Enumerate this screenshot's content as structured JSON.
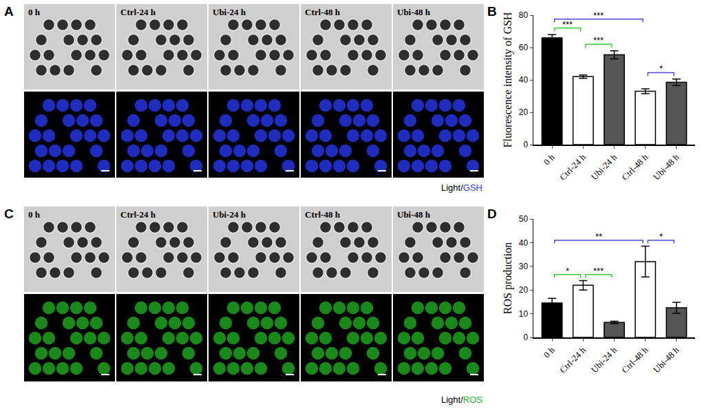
{
  "image_panels": [
    {
      "letter": "A",
      "labels": [
        "0 h",
        "Ctrl-24 h",
        "Ubi-24 h",
        "Ctrl-48 h",
        "Ubi-48 h"
      ],
      "channel_label": [
        "Light/",
        "GSH"
      ],
      "channel_color": "#2a3cff"
    },
    {
      "letter": "C",
      "labels": [
        "0 h",
        "Ctrl-24 h",
        "Ubi-24 h",
        "Ctrl-48 h",
        "Ubi-48 h"
      ],
      "channel_label": [
        "Light/",
        "ROS"
      ],
      "channel_color": "#22b822"
    }
  ],
  "chart_data": [
    {
      "letter": "B",
      "type": "bar",
      "y_label": "Fluorescence intensity of GSH",
      "categories": [
        "0 h",
        "Ctrl-24 h",
        "Ubi-24 h",
        "Ctrl-48 h",
        "Ubi-48 h"
      ],
      "values": [
        66,
        42,
        55.5,
        33,
        38.5
      ],
      "errors": [
        2,
        1,
        2.5,
        1.5,
        2
      ],
      "colors": [
        "#000000",
        "#ffffff",
        "#555555",
        "#ffffff",
        "#555555"
      ],
      "ylim": [
        0,
        80
      ],
      "yticks": [
        0,
        20,
        40,
        60,
        80
      ],
      "grid": false,
      "annotations": [
        {
          "from": "0 h",
          "to": "Ctrl-24 h",
          "text": "***",
          "color": "#33cc33"
        },
        {
          "from": "Ctrl-24 h",
          "to": "Ubi-24 h",
          "text": "***",
          "color": "#33cc33"
        },
        {
          "from": "0 h",
          "to": "Ctrl-48 h",
          "text": "***",
          "color": "#4a4ad8"
        },
        {
          "from": "Ctrl-48 h",
          "to": "Ubi-48 h",
          "text": "*",
          "color": "#4a4ad8"
        }
      ]
    },
    {
      "letter": "D",
      "type": "bar",
      "y_label": "ROS production",
      "categories": [
        "0 h",
        "Ctrl-24 h",
        "Ubi-24 h",
        "Ctrl-48 h",
        "Ubi-48 h"
      ],
      "values": [
        14.5,
        22,
        6.3,
        32,
        12.5
      ],
      "errors": [
        2,
        2,
        0.5,
        6.5,
        2.3
      ],
      "colors": [
        "#000000",
        "#ffffff",
        "#555555",
        "#ffffff",
        "#555555"
      ],
      "ylim": [
        0,
        50
      ],
      "yticks": [
        0,
        10,
        20,
        30,
        40,
        50
      ],
      "grid": false,
      "annotations": [
        {
          "from": "0 h",
          "to": "Ctrl-24 h",
          "text": "*",
          "color": "#33cc33"
        },
        {
          "from": "Ctrl-24 h",
          "to": "Ubi-24 h",
          "text": "***",
          "color": "#33cc33"
        },
        {
          "from": "0 h",
          "to": "Ctrl-48 h",
          "text": "**",
          "color": "#4a4ad8"
        },
        {
          "from": "Ctrl-48 h",
          "to": "Ubi-48 h",
          "text": "*",
          "color": "#4a4ad8"
        }
      ]
    }
  ]
}
